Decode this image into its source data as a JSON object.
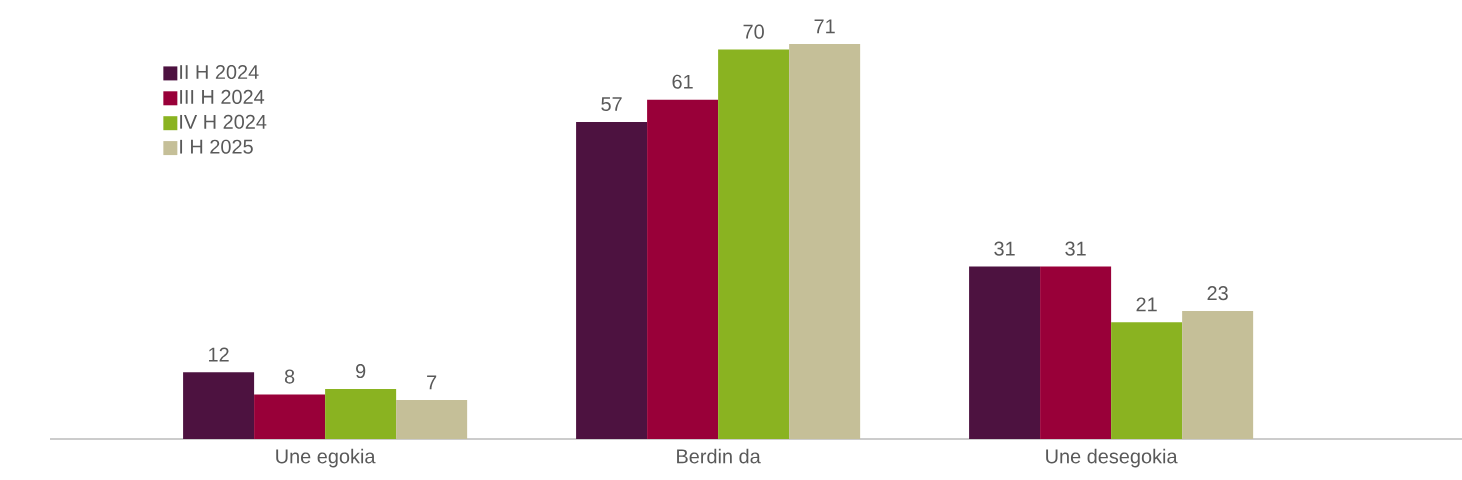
{
  "chart_data": {
    "type": "bar",
    "categories": [
      "Une egokia",
      "Berdin da",
      "Une desegokia"
    ],
    "series": [
      {
        "name": "II H 2024",
        "color": "#4d1240",
        "values": [
          12,
          57,
          31
        ]
      },
      {
        "name": "III H 2024",
        "color": "#990039",
        "values": [
          8,
          61,
          31
        ]
      },
      {
        "name": "IV H 2024",
        "color": "#8ab321",
        "values": [
          9,
          70,
          21
        ]
      },
      {
        "name": "I H 2025",
        "color": "#c5bf98",
        "values": [
          7,
          71,
          23
        ]
      }
    ],
    "data_labels": true,
    "legend": "top left"
  }
}
